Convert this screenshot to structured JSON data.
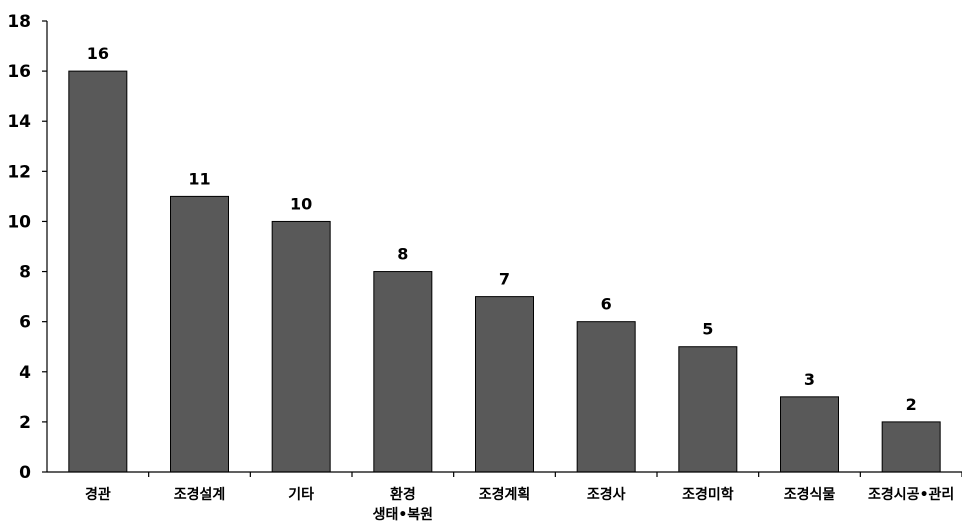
{
  "chart_data": {
    "type": "bar",
    "title": "",
    "xlabel": "",
    "ylabel": "",
    "categories": [
      "경관",
      "조경설계",
      "기타",
      "환경\n생태•복원",
      "조경계획",
      "조경사",
      "조경미학",
      "조경식물",
      "조경시공•관리"
    ],
    "values": [
      16,
      11,
      10,
      8,
      7,
      6,
      5,
      3,
      2
    ],
    "ylim": [
      0,
      18
    ],
    "yticks": [
      0,
      2,
      4,
      6,
      8,
      10,
      12,
      14,
      16,
      18
    ],
    "grid": false,
    "legend": "none",
    "data_labels": true,
    "colors": {
      "bar": "#595959",
      "bar_outline": "#000000",
      "axis": "#000000"
    }
  }
}
